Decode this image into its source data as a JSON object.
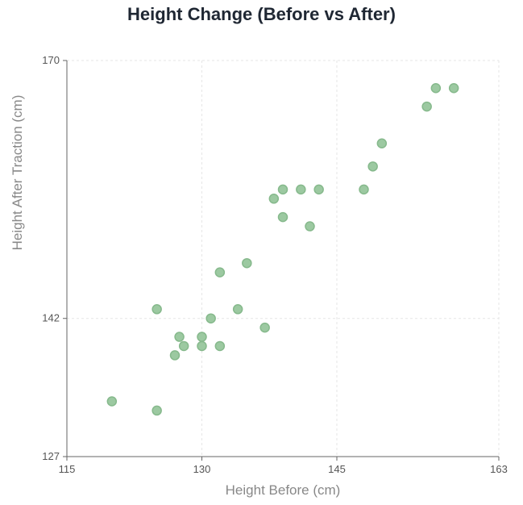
{
  "chart_data": {
    "type": "scatter",
    "title": "Height Change (Before vs After)",
    "xlabel": "Height Before (cm)",
    "ylabel": "Height After Traction (cm)",
    "xlim": [
      115,
      163
    ],
    "ylim": [
      127,
      170
    ],
    "x_ticks": [
      115,
      130,
      145,
      163
    ],
    "y_ticks": [
      127,
      142,
      170
    ],
    "grid": true,
    "point_color": "#9cc9a1",
    "point_stroke": "#86b98c",
    "points": [
      {
        "x": 120,
        "y": 133
      },
      {
        "x": 125,
        "y": 132
      },
      {
        "x": 125,
        "y": 143
      },
      {
        "x": 127,
        "y": 138
      },
      {
        "x": 127.5,
        "y": 140
      },
      {
        "x": 128,
        "y": 139
      },
      {
        "x": 130,
        "y": 140
      },
      {
        "x": 130,
        "y": 139
      },
      {
        "x": 131,
        "y": 142
      },
      {
        "x": 132,
        "y": 147
      },
      {
        "x": 132,
        "y": 139
      },
      {
        "x": 134,
        "y": 143
      },
      {
        "x": 135,
        "y": 148
      },
      {
        "x": 137,
        "y": 141
      },
      {
        "x": 138,
        "y": 155
      },
      {
        "x": 139,
        "y": 156
      },
      {
        "x": 139,
        "y": 153
      },
      {
        "x": 141,
        "y": 156
      },
      {
        "x": 142,
        "y": 152
      },
      {
        "x": 143,
        "y": 156
      },
      {
        "x": 148,
        "y": 156
      },
      {
        "x": 149,
        "y": 158.5
      },
      {
        "x": 150,
        "y": 161
      },
      {
        "x": 155,
        "y": 165
      },
      {
        "x": 156,
        "y": 167
      },
      {
        "x": 158,
        "y": 167
      }
    ]
  }
}
